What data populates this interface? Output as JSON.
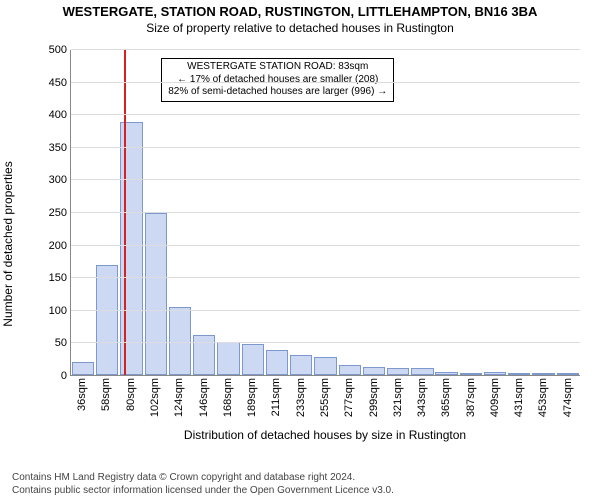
{
  "title": {
    "main": "WESTERGATE, STATION ROAD, RUSTINGTON, LITTLEHAMPTON, BN16 3BA",
    "sub": "Size of property relative to detached houses in Rustington",
    "fontsize_main": 13,
    "fontsize_sub": 12
  },
  "chart": {
    "type": "histogram",
    "background_color": "#ffffff",
    "grid_color": "#dddddd",
    "axis_color": "#888888",
    "bar_fill": "#cdd9f2",
    "bar_border": "#7d97cf",
    "bar_width_ratio": 0.92,
    "ylabel": "Number of detached properties",
    "ylabel_fontsize": 12,
    "xaxis_title": "Distribution of detached houses by size in Rustington",
    "xaxis_title_fontsize": 12,
    "xlim": [
      36,
      485
    ],
    "ylim": [
      0,
      500
    ],
    "ytick_step": 50,
    "xtick_labels": [
      "36sqm",
      "58sqm",
      "80sqm",
      "102sqm",
      "124sqm",
      "146sqm",
      "168sqm",
      "189sqm",
      "211sqm",
      "233sqm",
      "255sqm",
      "277sqm",
      "299sqm",
      "321sqm",
      "343sqm",
      "365sqm",
      "387sqm",
      "409sqm",
      "431sqm",
      "453sqm",
      "474sqm"
    ],
    "values": [
      20,
      168,
      388,
      248,
      105,
      62,
      50,
      48,
      38,
      30,
      28,
      15,
      12,
      10,
      10,
      5,
      0,
      5,
      0,
      0,
      0
    ],
    "tick_fontsize": 11,
    "reference_line": {
      "value": 83,
      "color": "#d22222",
      "width": 2
    },
    "annotation": {
      "lines": [
        "WESTERGATE STATION ROAD: 83sqm",
        "← 17% of detached houses are smaller (208)",
        "82% of semi-detached houses are larger (996) →"
      ],
      "x_center": 218,
      "y_top": 8,
      "fontsize": 10,
      "border_color": "#000000",
      "background": "#ffffff"
    }
  },
  "footer": {
    "line1": "Contains HM Land Registry data © Crown copyright and database right 2024.",
    "line2": "Contains public sector information licensed under the Open Government Licence v3.0.",
    "fontsize": 10,
    "color": "#444444"
  }
}
